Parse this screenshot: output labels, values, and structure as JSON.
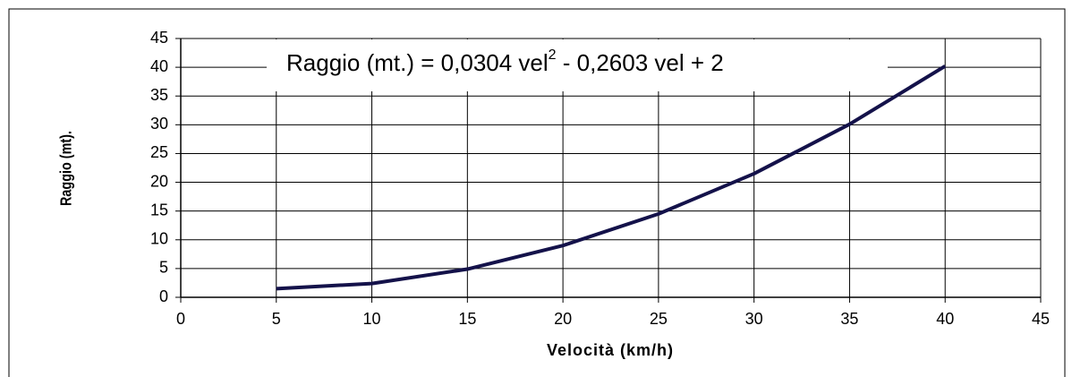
{
  "chart_data": {
    "type": "line",
    "title": "Raggio (mt.) = 0,0304 vel",
    "title_superscript": "2",
    "title_rest": " - 0,2603 vel + 2",
    "x_label": "Velocità (km/h)",
    "y_label": "Raggio (mt).",
    "x": [
      5,
      10,
      15,
      20,
      25,
      30,
      35,
      40
    ],
    "series": [
      {
        "name": "Raggio",
        "color": "#14124a",
        "values": [
          1.5,
          2.4,
          4.9,
          9.0,
          14.5,
          21.5,
          30.1,
          40.2
        ]
      }
    ],
    "xlim": [
      0,
      45
    ],
    "xticks": [
      0,
      5,
      10,
      15,
      20,
      25,
      30,
      35,
      40,
      45
    ],
    "ylim": [
      0,
      45
    ],
    "yticks": [
      0,
      5,
      10,
      15,
      20,
      25,
      30,
      35,
      40,
      45
    ],
    "grid": true
  }
}
